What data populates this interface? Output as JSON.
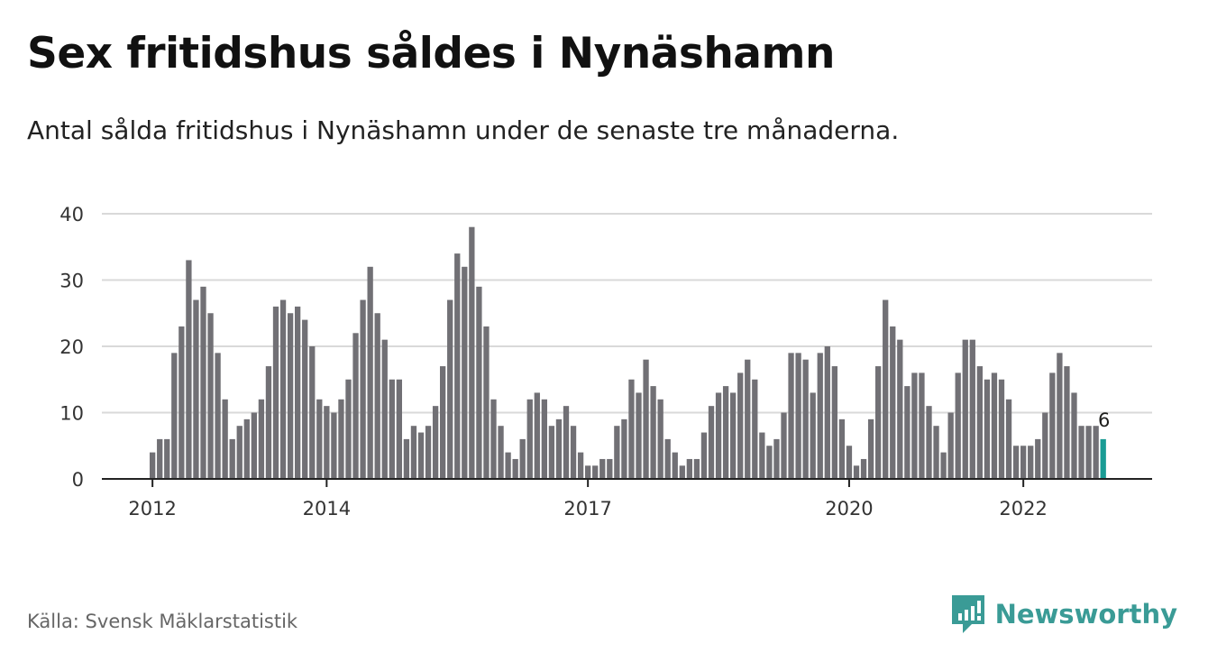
{
  "header": {
    "title": "Sex fritidshus såldes i Nynäshamn",
    "subtitle": "Antal sålda fritidshus i Nynäshamn under de senaste tre månaderna."
  },
  "footer": {
    "source": "Källa: Svensk Mäklarstatistik",
    "brand": "Newsworthy"
  },
  "colors": {
    "bar": "#717075",
    "highlight": "#1a9c95",
    "grid": "#d9d9d9",
    "axis": "#222222",
    "brand": "#3a9b96"
  },
  "icons": {
    "brand_logo": "bar-chart-speech-bubble-icon"
  },
  "chart_data": {
    "type": "bar",
    "title": "Sex fritidshus såldes i Nynäshamn",
    "xlabel": "",
    "ylabel": "",
    "ylim": [
      0,
      40
    ],
    "yticks": [
      0,
      10,
      20,
      30,
      40
    ],
    "x_tick_labels": [
      "2012",
      "2014",
      "2017",
      "2020",
      "2022"
    ],
    "grid": true,
    "legend": "none",
    "highlight_last": true,
    "last_label": "6",
    "start_period": "2012-01",
    "frequency": "monthly",
    "values": [
      4,
      6,
      6,
      19,
      23,
      33,
      27,
      29,
      25,
      19,
      12,
      6,
      8,
      9,
      10,
      12,
      17,
      26,
      27,
      25,
      26,
      24,
      20,
      12,
      11,
      10,
      12,
      15,
      22,
      27,
      32,
      25,
      21,
      15,
      15,
      6,
      8,
      7,
      8,
      11,
      17,
      27,
      34,
      32,
      38,
      29,
      23,
      12,
      8,
      4,
      3,
      6,
      12,
      13,
      12,
      8,
      9,
      11,
      8,
      4,
      2,
      2,
      3,
      3,
      8,
      9,
      15,
      13,
      18,
      14,
      12,
      6,
      4,
      2,
      3,
      3,
      7,
      11,
      13,
      14,
      13,
      16,
      18,
      15,
      7,
      5,
      6,
      10,
      19,
      19,
      18,
      13,
      19,
      20,
      17,
      9,
      5,
      2,
      3,
      9,
      17,
      27,
      23,
      21,
      14,
      16,
      16,
      11,
      8,
      4,
      10,
      16,
      21,
      21,
      17,
      15,
      16,
      15,
      12,
      5,
      5,
      5,
      6,
      10,
      16,
      19,
      17,
      13,
      8,
      8,
      8,
      6
    ]
  }
}
